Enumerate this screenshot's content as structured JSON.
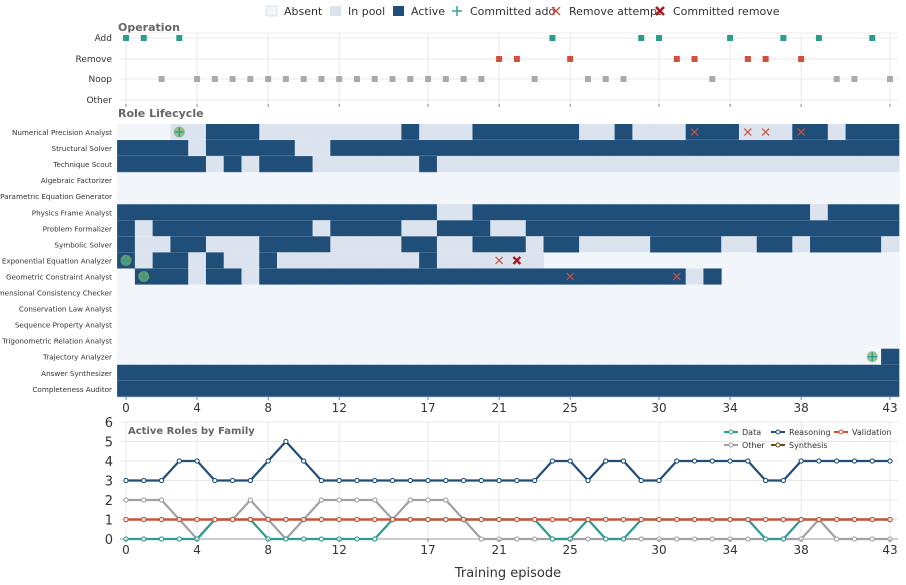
{
  "colors": {
    "absent": "#f2f5fa",
    "in_pool": "#dbe3ee",
    "active": "#1f4e79",
    "committed_add": "#2a9d8f",
    "remove_attempt": "#d1503a",
    "committed_remove": "#a61c1c",
    "noop": "#aaaaaa",
    "grid": "#e8e8e8",
    "series": {
      "Data": "#2a9d8f",
      "Reasoning": "#1f4e79",
      "Validation": "#d1503a",
      "Other": "#a0a0a8",
      "Synthesis": "#6b4e16"
    }
  },
  "legend": [
    "Absent",
    "In pool",
    "Active",
    "Committed add",
    "Remove attempt",
    "Committed remove"
  ],
  "operation_panel": {
    "title": "Operation",
    "rows": [
      "Add",
      "Remove",
      "Noop",
      "Other"
    ]
  },
  "lifecycle_panel": {
    "title": "Role Lifecycle"
  },
  "xlabel": "Training episode",
  "x_ticks": [
    0,
    4,
    8,
    12,
    17,
    21,
    25,
    30,
    34,
    38,
    43
  ],
  "chart_data": [
    {
      "type": "scatter",
      "title": "Operation",
      "categories": [
        "Add",
        "Remove",
        "Noop",
        "Other"
      ],
      "series": [
        {
          "name": "Add",
          "x": [
            0,
            1,
            3,
            24,
            29,
            30,
            34,
            37,
            39,
            42
          ]
        },
        {
          "name": "Remove",
          "x": [
            21,
            22,
            25,
            31,
            32,
            35,
            36,
            38
          ]
        },
        {
          "name": "Noop",
          "x": [
            2,
            4,
            5,
            6,
            7,
            8,
            9,
            10,
            11,
            12,
            13,
            14,
            15,
            16,
            17,
            18,
            19,
            20,
            23,
            26,
            27,
            28,
            33,
            40,
            41,
            43
          ]
        },
        {
          "name": "Other",
          "x": []
        }
      ],
      "xlim": [
        0,
        43
      ]
    },
    {
      "type": "heatmap",
      "title": "Role Lifecycle",
      "states": [
        "Absent",
        "In pool",
        "Active"
      ],
      "rows": [
        {
          "role": "Numerical Precision Analyst",
          "cells": "00011222111111112111222222112111222111221222222"
        },
        {
          "role": "Structural Solver",
          "cells": "222212222211222222222222222222222222222222221111"
        },
        {
          "role": "Technique Scout",
          "cells": "22222121222111111211111111111111111111111111111"
        },
        {
          "role": "Algebraic Factorizer",
          "cells": "00000000000000000000000000000000000000000000000"
        },
        {
          "role": "Parametric Equation Generator",
          "cells": "00000000000000000000000000000000000000000000000"
        },
        {
          "role": "Physics Frame Analyst",
          "cells": "22222222222222222211222222222222222222212222222"
        },
        {
          "role": "Problem Formalizer",
          "cells": "21222222222122221122211222222222222222222222222"
        },
        {
          "role": "Symbolic Solver",
          "cells": "21122111222211112211222122111122221122122221121"
        },
        {
          "role": "Exponential Equation Analyzer",
          "cells": "212212112111111112111111000000000000000000000000"
        },
        {
          "role": "Geometric Constraint Analyst",
          "cells": "022212212222222222222222222222221200000000000000"
        },
        {
          "role": "Dimensional Consistency Checker",
          "cells": "00000000000000000000000000000000000000000000000"
        },
        {
          "role": "Conservation Law Analyst",
          "cells": "00000000000000000000000000000000000000000000000"
        },
        {
          "role": "Sequence Property Analyst",
          "cells": "00000000000000000000000000000000000000000000000"
        },
        {
          "role": "Trigonometric Relation Analyst",
          "cells": "00000000000000000000000000000000000000000000000"
        },
        {
          "role": "Trajectory Analyzer",
          "cells": "00000000000000000000000000000000000000000002222"
        },
        {
          "role": "Answer Synthesizer",
          "cells": "22222222222222222222222222222222222222222222222"
        },
        {
          "role": "Completeness Auditor",
          "cells": "22222222222222222222222222222222222222222222222"
        }
      ],
      "markers": [
        {
          "role": "Numerical Precision Analyst",
          "x": 3,
          "kind": "Committed add"
        },
        {
          "role": "Numerical Precision Analyst",
          "x": 32,
          "kind": "Remove attempt"
        },
        {
          "role": "Numerical Precision Analyst",
          "x": 35,
          "kind": "Remove attempt"
        },
        {
          "role": "Numerical Precision Analyst",
          "x": 36,
          "kind": "Remove attempt"
        },
        {
          "role": "Numerical Precision Analyst",
          "x": 38,
          "kind": "Remove attempt"
        },
        {
          "role": "Exponential Equation Analyzer",
          "x": 0,
          "kind": "Committed add"
        },
        {
          "role": "Exponential Equation Analyzer",
          "x": 21,
          "kind": "Remove attempt"
        },
        {
          "role": "Exponential Equation Analyzer",
          "x": 22,
          "kind": "Committed remove"
        },
        {
          "role": "Geometric Constraint Analyst",
          "x": 1,
          "kind": "Committed add"
        },
        {
          "role": "Geometric Constraint Analyst",
          "x": 25,
          "kind": "Remove attempt"
        },
        {
          "role": "Geometric Constraint Analyst",
          "x": 31,
          "kind": "Remove attempt"
        },
        {
          "role": "Trajectory Analyzer",
          "x": 42,
          "kind": "Committed add"
        }
      ],
      "xlim": [
        0,
        43
      ]
    },
    {
      "type": "line",
      "title": "Active Roles by Family",
      "x": [
        0,
        1,
        2,
        3,
        4,
        5,
        6,
        7,
        8,
        9,
        10,
        11,
        12,
        13,
        14,
        15,
        16,
        17,
        18,
        19,
        20,
        21,
        22,
        23,
        24,
        25,
        26,
        27,
        28,
        29,
        30,
        31,
        32,
        33,
        34,
        35,
        36,
        37,
        38,
        39,
        40,
        41,
        42,
        43
      ],
      "series": [
        {
          "name": "Data",
          "values": [
            0,
            0,
            0,
            0,
            0,
            1,
            1,
            1,
            0,
            0,
            0,
            0,
            0,
            0,
            0,
            1,
            1,
            1,
            1,
            1,
            1,
            1,
            1,
            1,
            0,
            0,
            1,
            0,
            0,
            1,
            1,
            1,
            1,
            1,
            1,
            1,
            0,
            0,
            1,
            1,
            1,
            1,
            1,
            1
          ]
        },
        {
          "name": "Reasoning",
          "values": [
            3,
            3,
            3,
            4,
            4,
            3,
            3,
            3,
            4,
            5,
            4,
            3,
            3,
            3,
            3,
            3,
            3,
            3,
            3,
            3,
            3,
            3,
            3,
            3,
            4,
            4,
            3,
            4,
            4,
            3,
            3,
            4,
            4,
            4,
            4,
            4,
            3,
            3,
            4,
            4,
            4,
            4,
            4,
            4
          ]
        },
        {
          "name": "Validation",
          "values": [
            1,
            1,
            1,
            1,
            1,
            1,
            1,
            1,
            1,
            1,
            1,
            1,
            1,
            1,
            1,
            1,
            1,
            1,
            1,
            1,
            1,
            1,
            1,
            1,
            1,
            1,
            1,
            1,
            1,
            1,
            1,
            1,
            1,
            1,
            1,
            1,
            1,
            1,
            1,
            1,
            1,
            1,
            1,
            1
          ]
        },
        {
          "name": "Other",
          "values": [
            2,
            2,
            2,
            1,
            0,
            1,
            1,
            2,
            1,
            0,
            1,
            2,
            2,
            2,
            2,
            1,
            2,
            2,
            2,
            1,
            0,
            0,
            0,
            0,
            0,
            0,
            0,
            0,
            0,
            0,
            0,
            0,
            0,
            0,
            0,
            0,
            0,
            0,
            0,
            1,
            0,
            0,
            0,
            0
          ]
        },
        {
          "name": "Synthesis",
          "values": [
            1,
            1,
            1,
            1,
            1,
            1,
            1,
            1,
            1,
            1,
            1,
            1,
            1,
            1,
            1,
            1,
            1,
            1,
            1,
            1,
            1,
            1,
            1,
            1,
            1,
            1,
            1,
            1,
            1,
            1,
            1,
            1,
            1,
            1,
            1,
            1,
            1,
            1,
            1,
            1,
            1,
            1,
            1,
            1
          ]
        }
      ],
      "ylim": [
        0,
        6
      ],
      "y_ticks": [
        0,
        1,
        2,
        3,
        4,
        5,
        6
      ],
      "legend_position": "top-right"
    }
  ]
}
